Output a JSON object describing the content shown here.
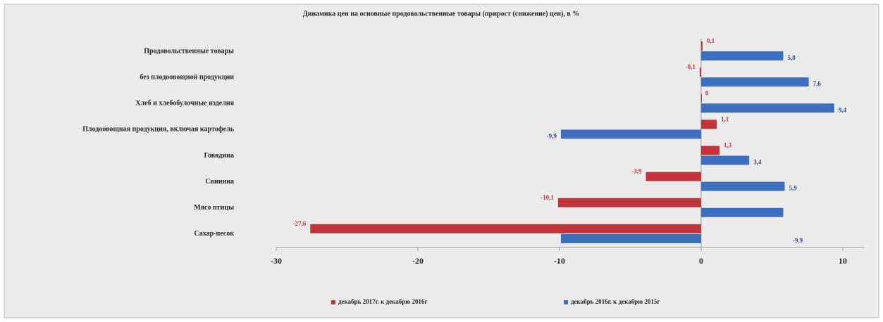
{
  "chart_data": {
    "type": "bar",
    "orientation": "horizontal",
    "title": "Динамика цен на основные продовольственные товары (прирост (снижение) цен), в %",
    "categories": [
      "Продовольственные товары",
      "без плодоовощной продукции",
      "Хлеб и хлебобулочные изделия",
      "Плодоовощная продукция, включая картофель",
      "Говядина",
      "Свинина",
      "Мясо птицы",
      "Сахар-песок"
    ],
    "series": [
      {
        "name": "декабрь 2017г. к декабрю 2016г",
        "color": "#c0343a",
        "values": [
          0.1,
          -0.1,
          0,
          1.1,
          1.3,
          -3.9,
          -10.1,
          -27.6
        ],
        "value_labels": [
          "0,1",
          "-0,1",
          "0",
          "1,1",
          "1,3",
          "-3,9",
          "-10,1",
          "-27,6"
        ]
      },
      {
        "name": "декабрь 2016г. к декабрю 2015г",
        "color": "#3d6fbf",
        "values": [
          5.8,
          7.6,
          9.4,
          -9.9,
          3.4,
          5.9,
          5.8,
          -9.9
        ],
        "value_labels": [
          "5,8",
          "7,6",
          "9,4",
          "-9,9",
          "3,4",
          "5,9",
          null,
          "-9,9"
        ]
      }
    ],
    "xlim": [
      -30,
      11.5
    ],
    "xticks": [
      -30,
      -20,
      -10,
      0,
      10
    ],
    "legend": "bottom"
  }
}
